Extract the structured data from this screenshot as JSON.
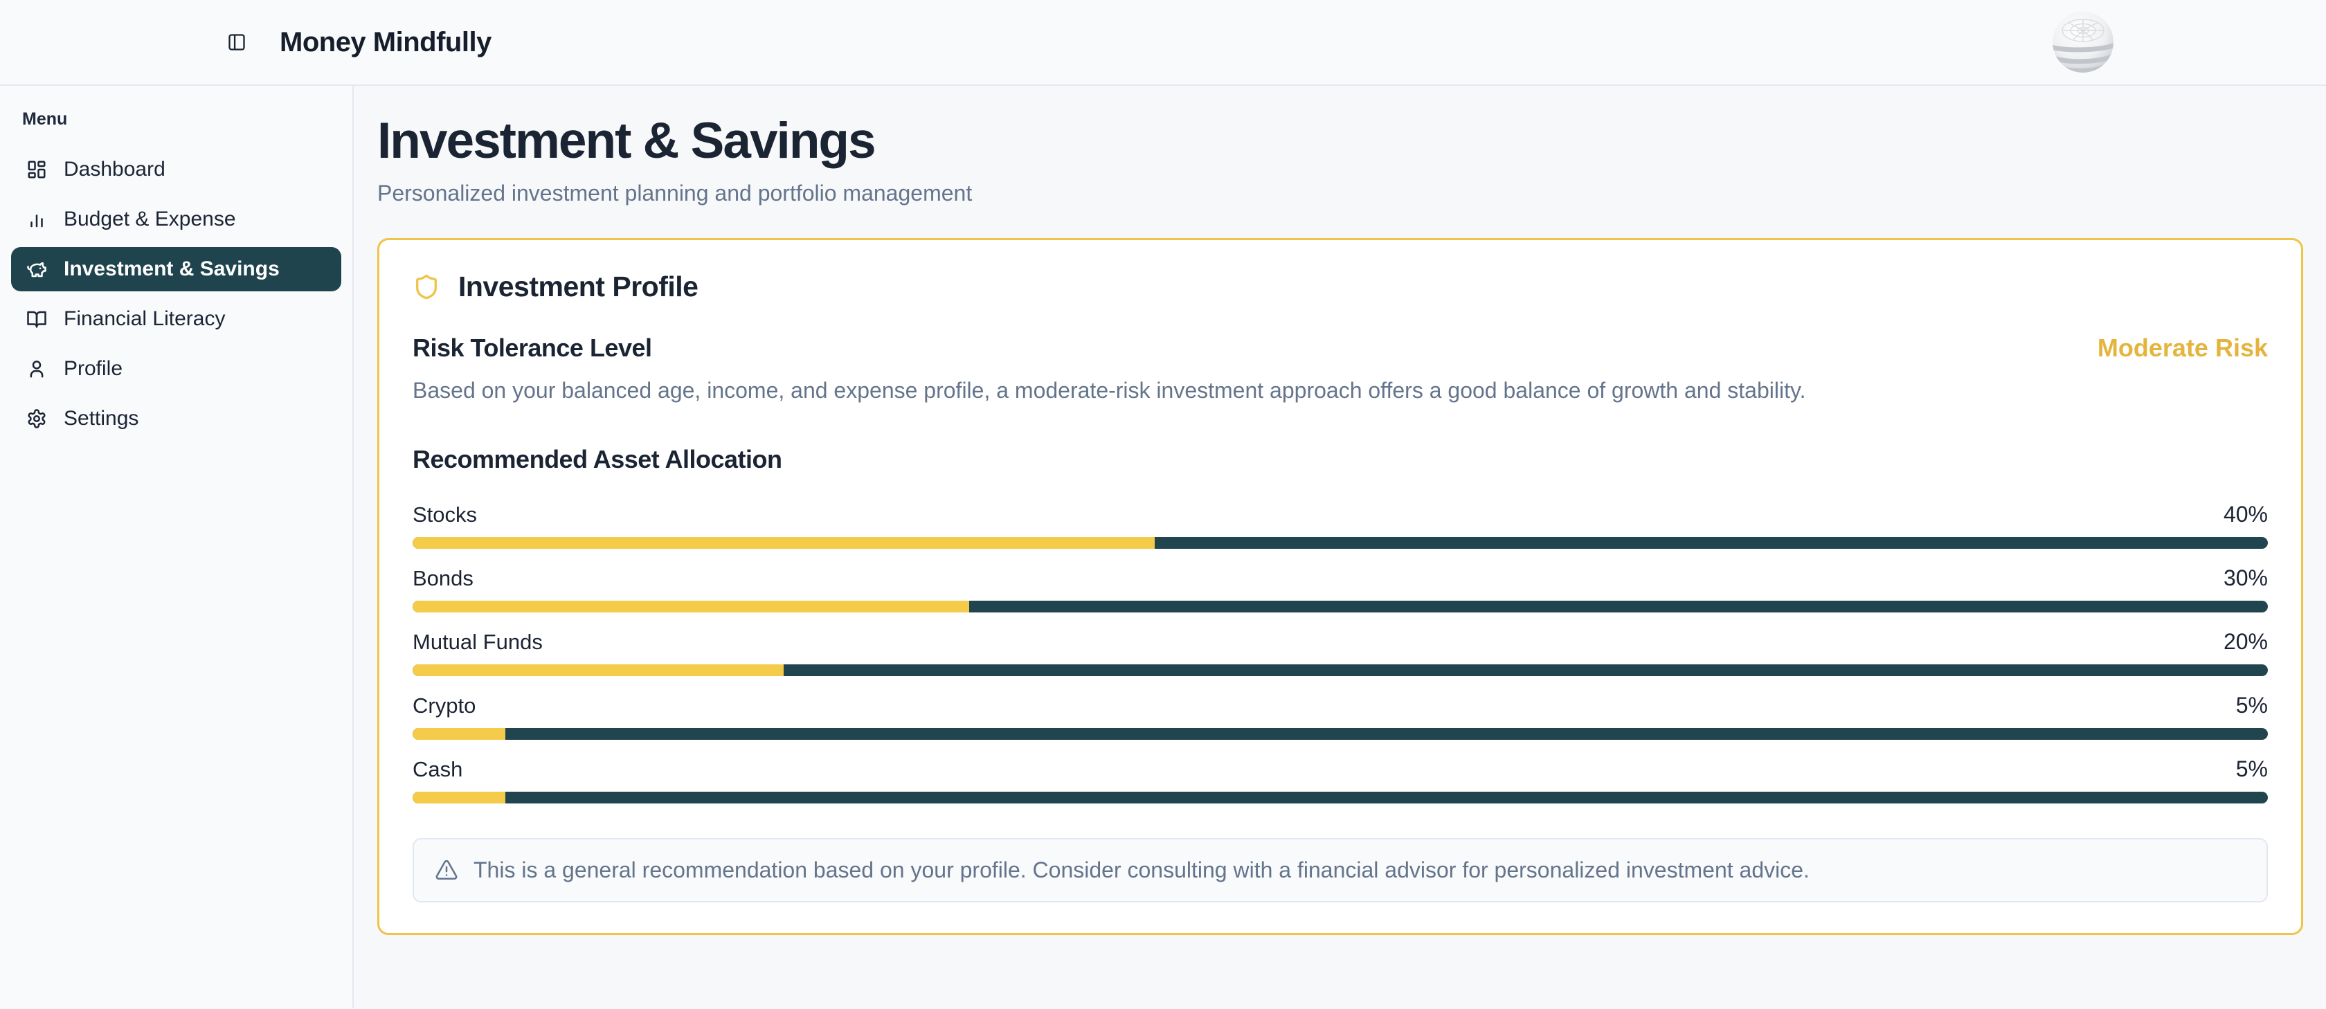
{
  "header": {
    "app_title": "Money Mindfully"
  },
  "sidebar": {
    "menu_label": "Menu",
    "items": [
      {
        "label": "Dashboard",
        "icon": "dashboard-icon",
        "active": false
      },
      {
        "label": "Budget & Expense",
        "icon": "bar-chart-icon",
        "active": false
      },
      {
        "label": "Investment & Savings",
        "icon": "piggy-bank-icon",
        "active": true
      },
      {
        "label": "Financial Literacy",
        "icon": "book-open-icon",
        "active": false
      },
      {
        "label": "Profile",
        "icon": "user-icon",
        "active": false
      },
      {
        "label": "Settings",
        "icon": "gear-icon",
        "active": false
      }
    ]
  },
  "page": {
    "title": "Investment & Savings",
    "subtitle": "Personalized investment planning and portfolio management"
  },
  "card": {
    "title": "Investment Profile",
    "title_icon": "shield-icon",
    "risk_heading": "Risk Tolerance Level",
    "risk_level": "Moderate Risk",
    "risk_description": "Based on your balanced age, income, and expense profile, a moderate-risk investment approach offers a good balance of growth and stability.",
    "allocation_heading": "Recommended Asset Allocation",
    "allocation": [
      {
        "label": "Stocks",
        "percent_label": "40%",
        "percent": 40
      },
      {
        "label": "Bonds",
        "percent_label": "30%",
        "percent": 30
      },
      {
        "label": "Mutual Funds",
        "percent_label": "20%",
        "percent": 20
      },
      {
        "label": "Crypto",
        "percent_label": "5%",
        "percent": 5
      },
      {
        "label": "Cash",
        "percent_label": "5%",
        "percent": 5
      }
    ],
    "note_icon": "warning-triangle-icon",
    "note": "This is a general recommendation based on your profile. Consider consulting with a financial advisor for personalized investment advice."
  },
  "colors": {
    "page_bg": "#F7F8FA",
    "gold_border": "#F0C349",
    "gold_text": "#E4B43C",
    "bar_fill": "#F5CB4A",
    "bar_track": "#21454F",
    "active_item_bg": "#20444E",
    "heading_text": "#1C2434",
    "muted_text": "#64748B"
  }
}
